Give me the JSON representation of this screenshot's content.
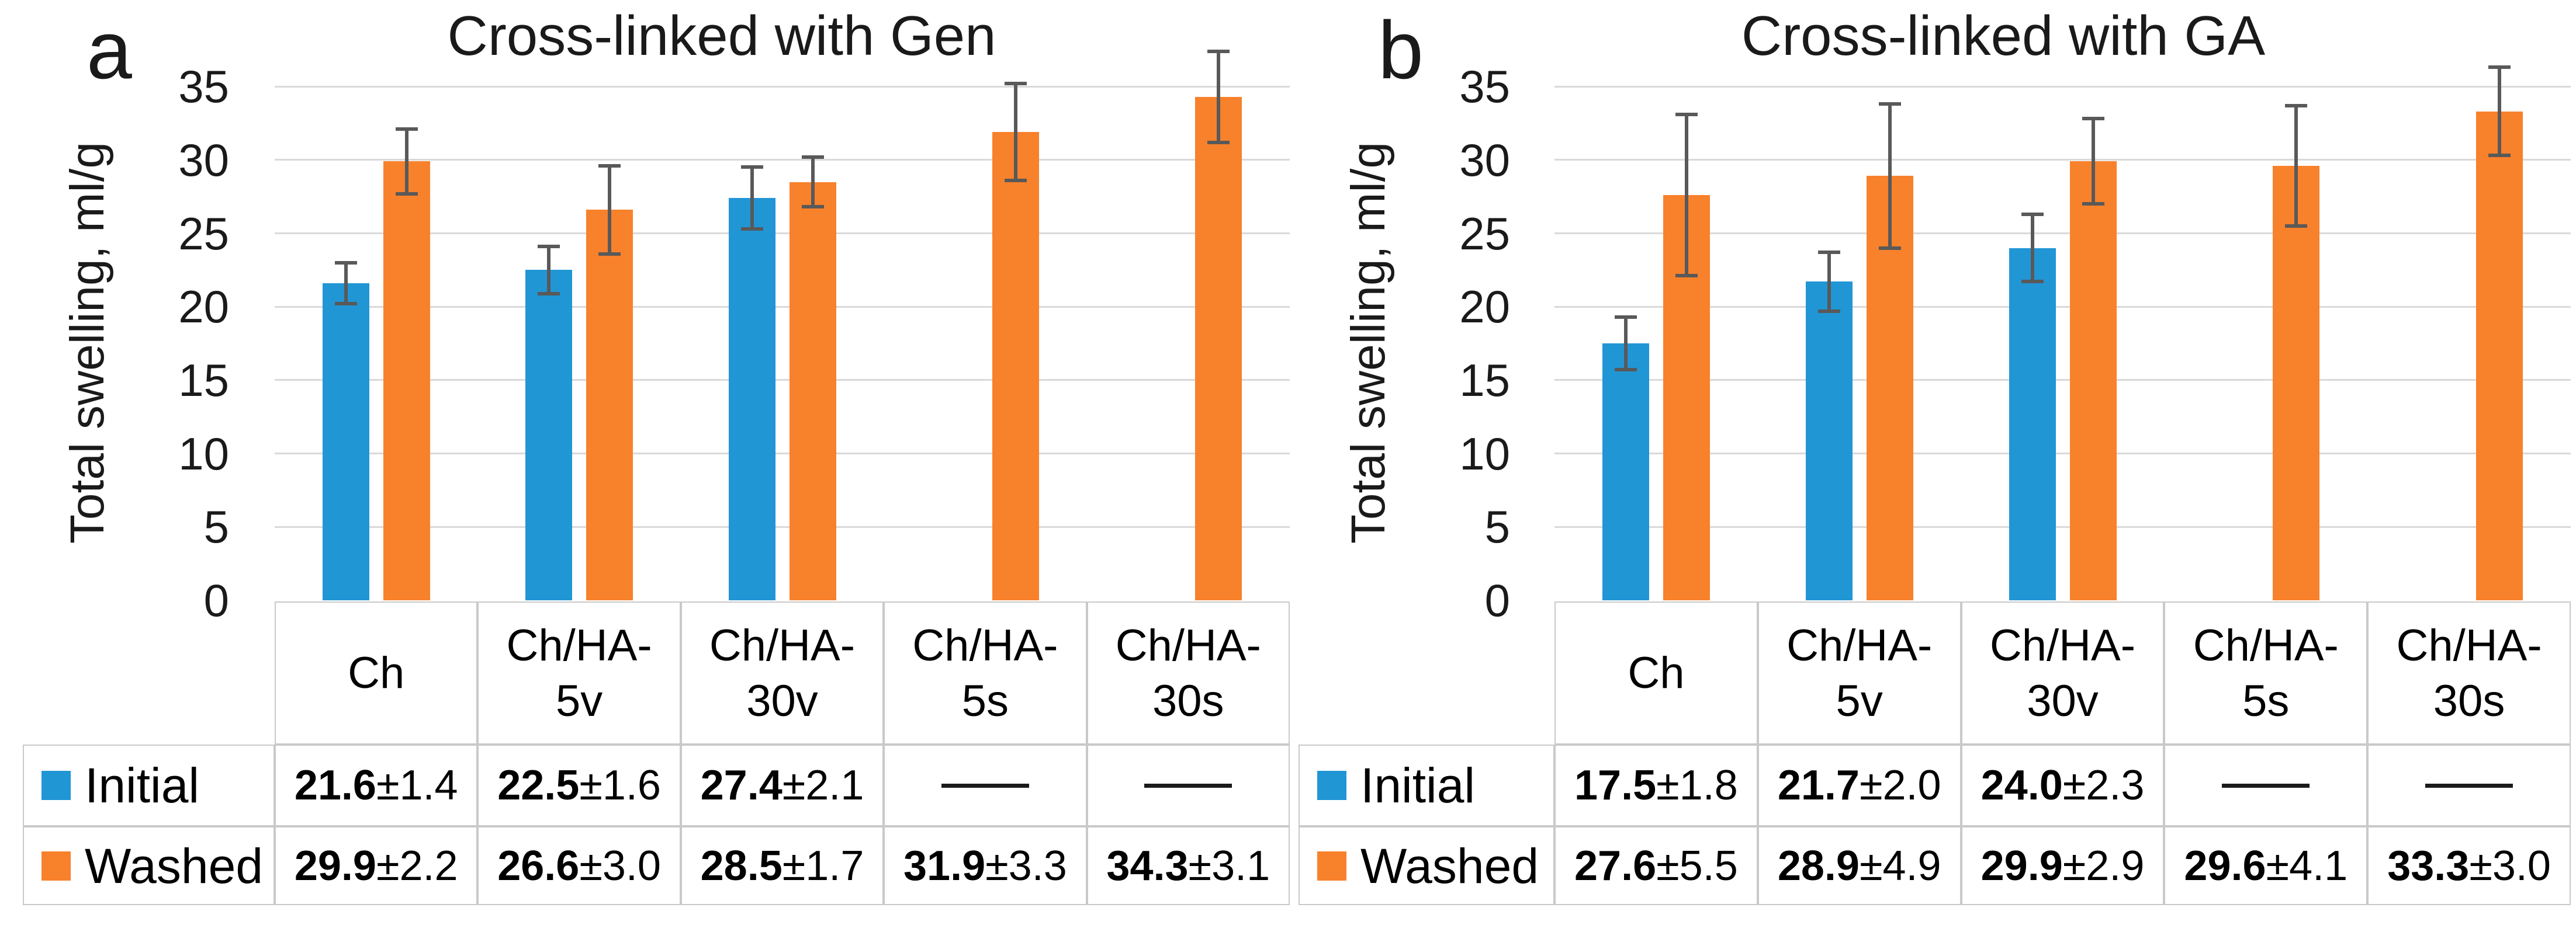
{
  "colors": {
    "initial": "#2196D5",
    "washed": "#F8812B",
    "gridline": "#D9D9D9",
    "table_border": "#C9C9C9",
    "error_bar": "#595959",
    "text": "#000000"
  },
  "empty_cell_dash": "—",
  "chart_data": [
    {
      "type": "bar",
      "panel_letter": "a",
      "title": "Cross-linked with Gen",
      "ylabel": "Total swelling, ml/g",
      "xlabel": "",
      "ylim": [
        0,
        35
      ],
      "yticks": [
        0,
        5,
        10,
        15,
        20,
        25,
        30,
        35
      ],
      "grid": true,
      "legend_position": "table-left",
      "categories": [
        {
          "label": "Ch",
          "lines": [
            "Ch"
          ]
        },
        {
          "label": "Ch/HA-5v",
          "lines": [
            "Ch/HA-",
            "5v"
          ]
        },
        {
          "label": "Ch/HA-30v",
          "lines": [
            "Ch/HA-",
            "30v"
          ]
        },
        {
          "label": "Ch/HA-5s",
          "lines": [
            "Ch/HA-",
            "5s"
          ]
        },
        {
          "label": "Ch/HA-30s",
          "lines": [
            "Ch/HA-",
            "30s"
          ]
        }
      ],
      "series": [
        {
          "name": "Initial",
          "color_key": "initial",
          "values": [
            21.6,
            22.5,
            27.4,
            null,
            null
          ],
          "errors": [
            1.4,
            1.6,
            2.1,
            null,
            null
          ],
          "table_cells": [
            "21.6±1.4",
            "22.5±1.6",
            "27.4±2.1",
            "—",
            "—"
          ]
        },
        {
          "name": "Washed",
          "color_key": "washed",
          "values": [
            29.9,
            26.6,
            28.5,
            31.9,
            34.3
          ],
          "errors": [
            2.2,
            3.0,
            1.7,
            3.3,
            3.1
          ],
          "table_cells": [
            "29.9±2.2",
            "26.6±3.0",
            "28.5±1.7",
            "31.9±3.3",
            "34.3±3.1"
          ]
        }
      ]
    },
    {
      "type": "bar",
      "panel_letter": "b",
      "title": "Cross-linked with GA",
      "ylabel": "Total swelling, ml/g",
      "xlabel": "",
      "ylim": [
        0,
        35
      ],
      "yticks": [
        0,
        5,
        10,
        15,
        20,
        25,
        30,
        35
      ],
      "grid": true,
      "legend_position": "table-left",
      "categories": [
        {
          "label": "Ch",
          "lines": [
            "Ch"
          ]
        },
        {
          "label": "Ch/HA-5v",
          "lines": [
            "Ch/HA-",
            "5v"
          ]
        },
        {
          "label": "Ch/HA-30v",
          "lines": [
            "Ch/HA-",
            "30v"
          ]
        },
        {
          "label": "Ch/HA-5s",
          "lines": [
            "Ch/HA-",
            "5s"
          ]
        },
        {
          "label": "Ch/HA-30s",
          "lines": [
            "Ch/HA-",
            "30s"
          ]
        }
      ],
      "series": [
        {
          "name": "Initial",
          "color_key": "initial",
          "values": [
            17.5,
            21.7,
            24.0,
            null,
            null
          ],
          "errors": [
            1.8,
            2.0,
            2.3,
            null,
            null
          ],
          "table_cells": [
            "17.5±1.8",
            "21.7±2.0",
            "24.0±2.3",
            "—",
            "—"
          ]
        },
        {
          "name": "Washed",
          "color_key": "washed",
          "values": [
            27.6,
            28.9,
            29.9,
            29.6,
            33.3
          ],
          "errors": [
            5.5,
            4.9,
            2.9,
            4.1,
            3.0
          ],
          "table_cells": [
            "27.6±5.5",
            "28.9±4.9",
            "29.9±2.9",
            "29.6±4.1",
            "33.3±3.0"
          ]
        }
      ]
    }
  ]
}
